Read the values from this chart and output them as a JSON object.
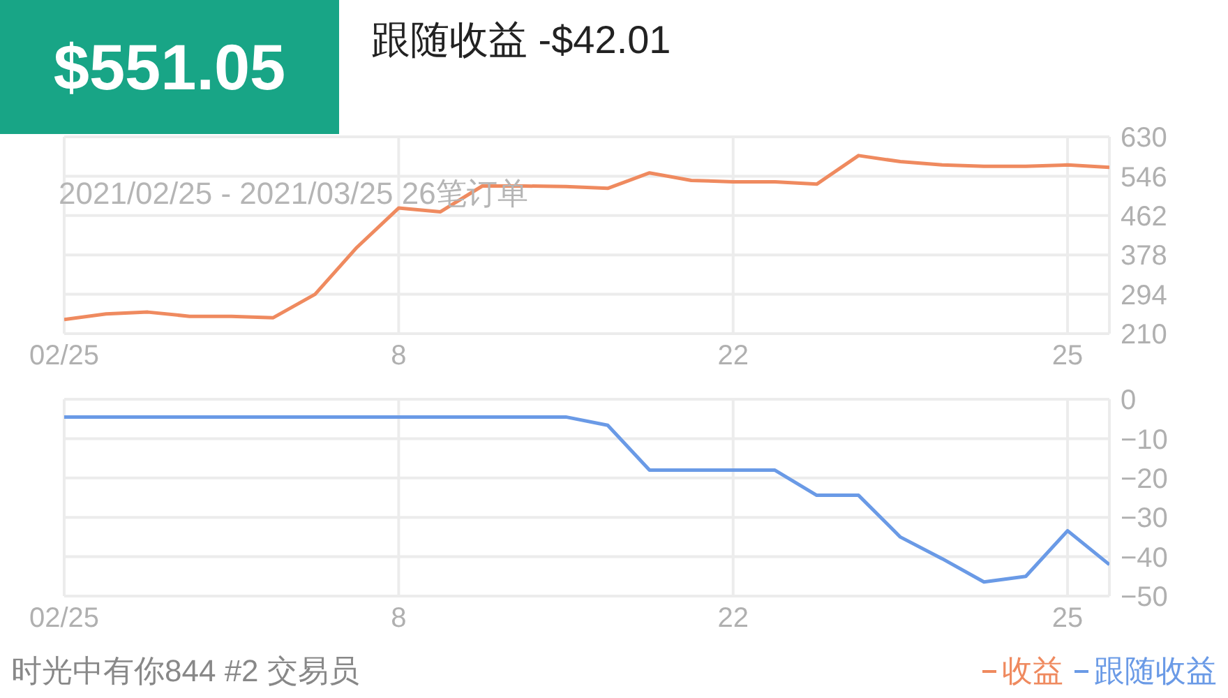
{
  "chart_data": [
    {
      "type": "line",
      "title": "$551.05",
      "subtitle": "跟随收益 -$42.01",
      "annotations": [
        "2021/02/25 - 2021/03/25 26笔订单"
      ],
      "categories": [
        "02/25",
        null,
        null,
        null,
        null,
        null,
        null,
        null,
        "8",
        null,
        null,
        null,
        null,
        null,
        null,
        null,
        "22",
        null,
        null,
        null,
        null,
        null,
        null,
        null,
        "25",
        null
      ],
      "series": [
        {
          "name": "收益",
          "color": "#ef8a5f",
          "values": [
            240,
            252,
            256,
            247,
            247,
            244,
            294,
            394,
            478,
            470,
            525,
            525,
            524,
            520,
            553,
            537,
            534,
            534,
            529,
            590,
            577,
            570,
            567,
            567,
            570,
            565
          ]
        }
      ],
      "ylim": [
        210,
        630
      ],
      "yticks": [
        210,
        294,
        378,
        462,
        546,
        630
      ],
      "grid": true,
      "legend": "bottom right",
      "marker": "none",
      "line_style": "solid"
    },
    {
      "type": "line",
      "annotations": [
        "时光中有你844 #2 交易员"
      ],
      "categories": [
        "02/25",
        null,
        null,
        null,
        null,
        null,
        null,
        null,
        "8",
        null,
        null,
        null,
        null,
        null,
        null,
        null,
        "22",
        null,
        null,
        null,
        null,
        null,
        null,
        null,
        "25",
        null
      ],
      "series": [
        {
          "name": "跟随收益",
          "color": "#6a9ae6",
          "values": [
            -4.5,
            -4.5,
            -4.5,
            -4.5,
            -4.5,
            -4.5,
            -4.5,
            -4.5,
            -4.5,
            -4.5,
            -4.5,
            -4.5,
            -4.5,
            -6.6,
            -18,
            -18,
            -18,
            -18,
            -24.4,
            -24.4,
            -35,
            -40.5,
            -46.4,
            -45,
            -33.4,
            -42
          ]
        }
      ],
      "ylim": [
        -50,
        0
      ],
      "yticks": [
        0,
        -10,
        -20,
        -30,
        -40,
        -50
      ],
      "grid": true,
      "legend": "bottom right",
      "marker": "none",
      "line_style": "solid"
    }
  ]
}
